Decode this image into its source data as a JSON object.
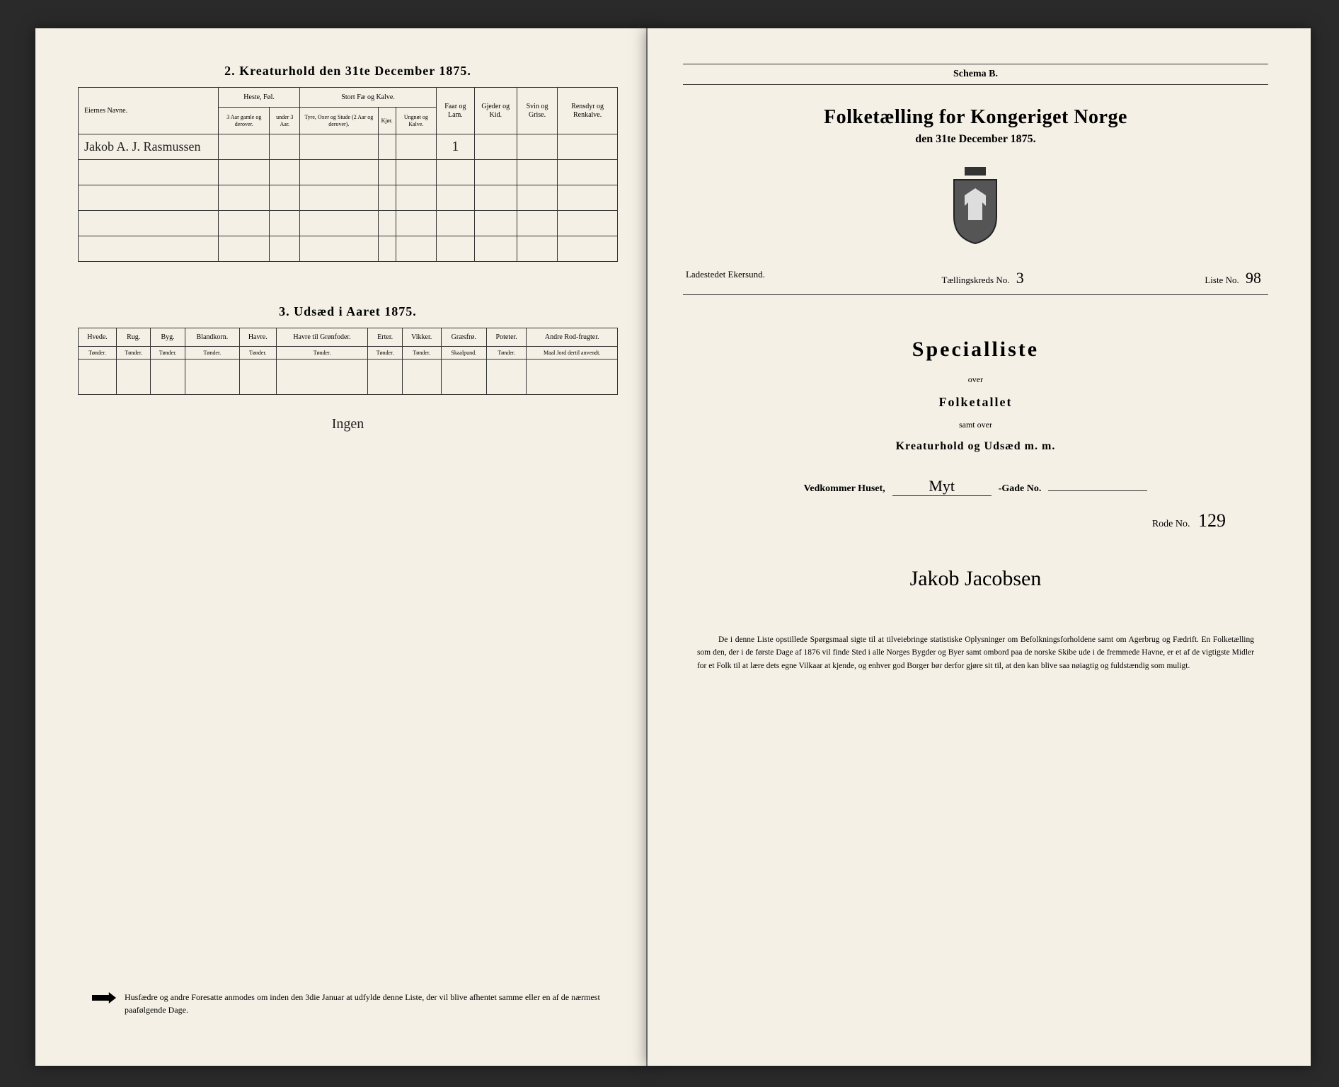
{
  "left": {
    "section2": {
      "title": "2. Kreaturhold den 31te December 1875.",
      "headers": {
        "name": "Eiernes Navne.",
        "horses": "Heste, Føl.",
        "cattle": "Stort Fæ og Kalve.",
        "sheep": "Faar og Lam.",
        "goats": "Gjeder og Kid.",
        "pigs": "Svin og Grise.",
        "reindeer": "Rensdyr og Renkalve."
      },
      "subheaders": {
        "h1": "3 Aar gamle og derover.",
        "h2": "under 3 Aar.",
        "c1": "Tyre, Oxer og Stude (2 Aar og derover).",
        "c2": "Kjør.",
        "c3": "Ungnøt og Kalve."
      },
      "rows": [
        {
          "name": "Jakob A. J. Rasmussen",
          "horses1": "",
          "horses2": "",
          "cattle1": "",
          "cattle2": "",
          "cattle3": "",
          "sheep": "1",
          "goats": "",
          "pigs": "",
          "reindeer": ""
        },
        {
          "name": "",
          "horses1": "",
          "horses2": "",
          "cattle1": "",
          "cattle2": "",
          "cattle3": "",
          "sheep": "",
          "goats": "",
          "pigs": "",
          "reindeer": ""
        },
        {
          "name": "",
          "horses1": "",
          "horses2": "",
          "cattle1": "",
          "cattle2": "",
          "cattle3": "",
          "sheep": "",
          "goats": "",
          "pigs": "",
          "reindeer": ""
        },
        {
          "name": "",
          "horses1": "",
          "horses2": "",
          "cattle1": "",
          "cattle2": "",
          "cattle3": "",
          "sheep": "",
          "goats": "",
          "pigs": "",
          "reindeer": ""
        },
        {
          "name": "",
          "horses1": "",
          "horses2": "",
          "cattle1": "",
          "cattle2": "",
          "cattle3": "",
          "sheep": "",
          "goats": "",
          "pigs": "",
          "reindeer": ""
        }
      ]
    },
    "section3": {
      "title": "3. Udsæd i Aaret 1875.",
      "headers": [
        "Hvede.",
        "Rug.",
        "Byg.",
        "Blandkorn.",
        "Havre.",
        "Havre til Grønfoder.",
        "Erter.",
        "Vikker.",
        "Græsfrø.",
        "Poteter.",
        "Andre Rod-frugter."
      ],
      "units": [
        "Tønder.",
        "Tønder.",
        "Tønder.",
        "Tønder.",
        "Tønder.",
        "Tønder.",
        "Tønder.",
        "Tønder.",
        "Skaalpund.",
        "Tønder.",
        "Maal Jord dertil anvendt."
      ],
      "row": [
        "",
        "",
        "",
        "",
        "",
        "",
        "",
        "",
        "",
        "",
        ""
      ],
      "signature": "Ingen"
    },
    "footer": "Husfædre og andre Foresatte anmodes om inden den 3die Januar at udfylde denne Liste, der vil blive afhentet samme eller en af de nærmest paafølgende Dage."
  },
  "right": {
    "schema": "Schema B.",
    "title": "Folketælling for Kongeriget Norge",
    "subtitle": "den 31te December 1875.",
    "place_label": "Ladestedet Ekersund.",
    "kreds_label": "Tællingskreds No.",
    "kreds_value": "3",
    "liste_label": "Liste No.",
    "liste_value": "98",
    "special": "Specialliste",
    "over": "over",
    "folketallet": "Folketallet",
    "samt": "samt over",
    "kreatur": "Kreaturhold og Udsæd m. m.",
    "vedkommer": "Vedkommer Huset,",
    "gade_hw": "Myt",
    "gade_label": "-Gade No.",
    "rode_label": "Rode No.",
    "rode_value": "129",
    "signature": "Jakob Jacobsen",
    "bottom": "De i denne Liste opstillede Spørgsmaal sigte til at tilveiebringe statistiske Oplysninger om Befolkningsforholdene samt om Agerbrug og Fædrift. En Folketælling som den, der i de første Dage af 1876 vil finde Sted i alle Norges Bygder og Byer samt ombord paa de norske Skibe ude i de fremmede Havne, er et af de vigtigste Midler for et Folk til at lære dets egne Vilkaar at kjende, og enhver god Borger bør derfor gjøre sit til, at den kan blive saa nøiagtig og fuldstændig som muligt."
  }
}
